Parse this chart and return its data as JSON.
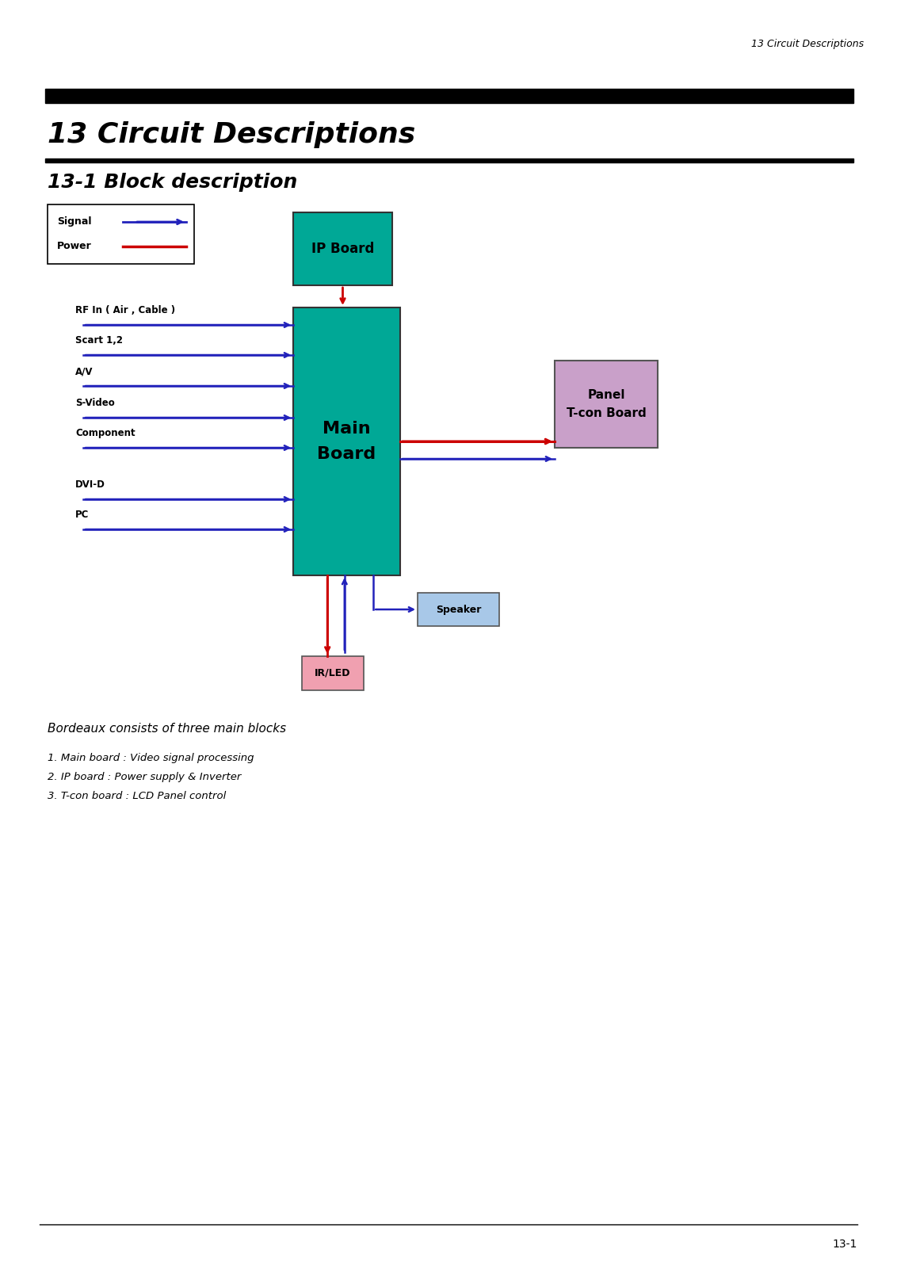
{
  "page_header": "13 Circuit Descriptions",
  "section_title": "13 Circuit Descriptions",
  "subsection_title": "13-1 Block description",
  "footer_text": "13-1",
  "legend_signal": "Signal",
  "legend_power": "Power",
  "signal_color": "#2222BB",
  "power_color": "#CC0000",
  "teal_color": "#00A896",
  "purple_color": "#C9A0C9",
  "speaker_color": "#A8C8E8",
  "irled_color": "#F0A0B0",
  "input_labels": [
    "RF In ( Air , Cable )",
    "Scart 1,2",
    "A/V",
    "S-Video",
    "Component",
    "DVI-D",
    "PC"
  ],
  "ip_board_label": "IP Board",
  "main_board_label": "Main\nBoard",
  "panel_tcon_label": "Panel\nT-con Board",
  "speaker_label": "Speaker",
  "irled_label": "IR/LED",
  "text_block": "Bordeaux consists of three main blocks",
  "list_items": [
    "1. Main board : Video signal processing",
    "2. IP board : Power supply & Inverter",
    "3. T-con board : LCD Panel control"
  ]
}
